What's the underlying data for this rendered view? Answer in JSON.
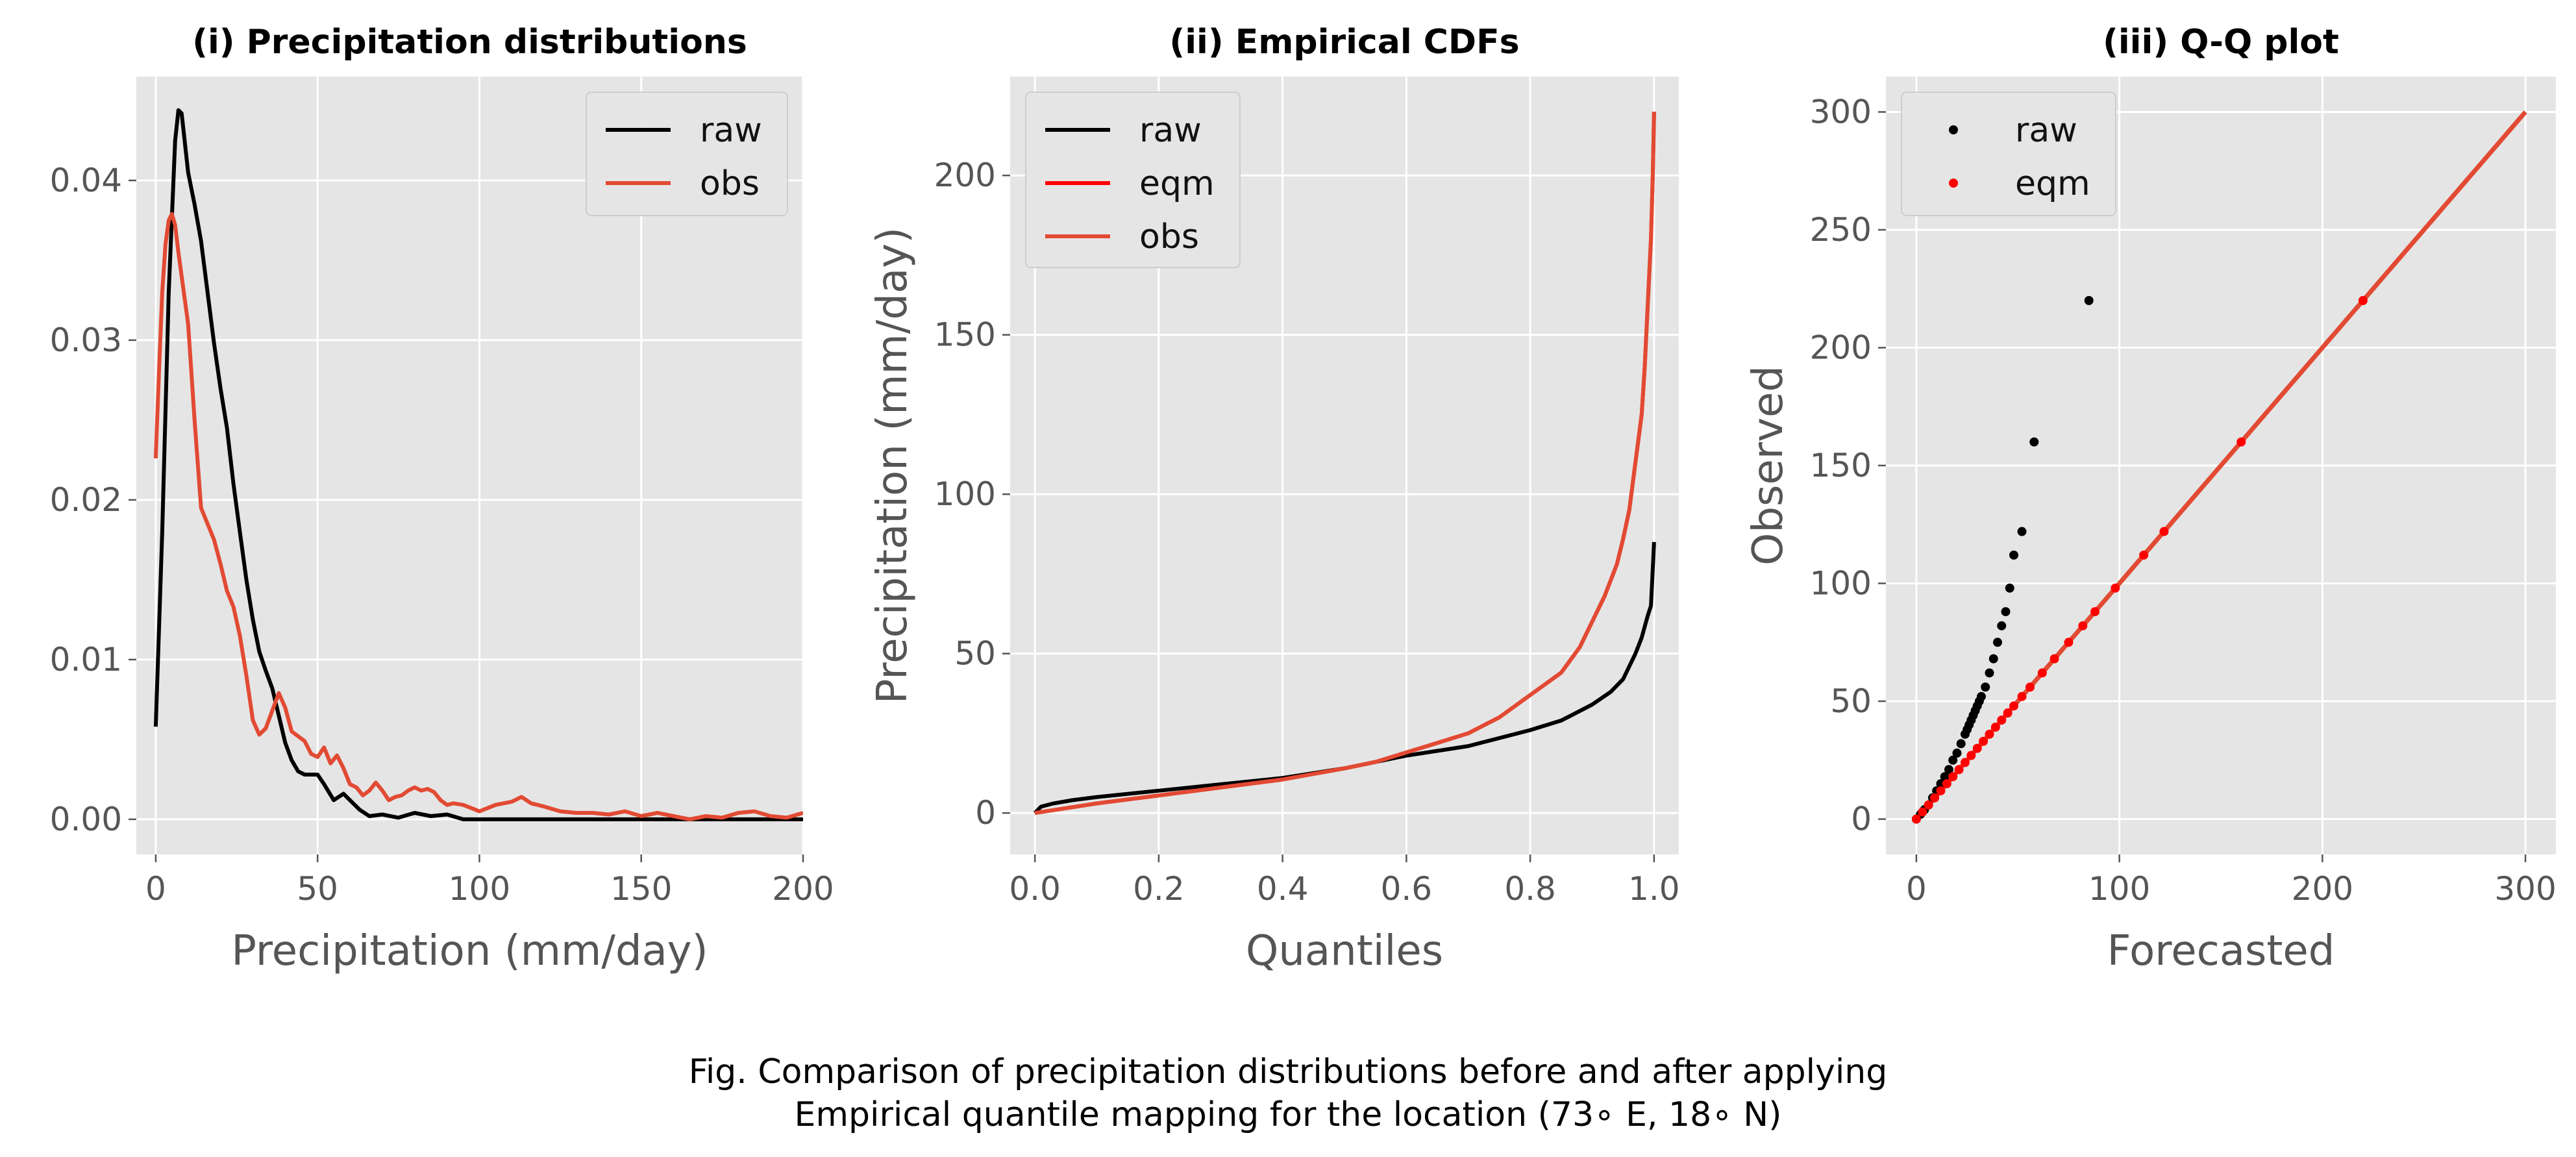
{
  "caption": {
    "line1": "Fig. Comparison of precipitation distributions before and after applying",
    "line2": "Empirical quantile mapping for the location (73∘ E, 18∘ N)"
  },
  "colors": {
    "raw": "#000000",
    "obs": "#E24A33",
    "eqm": "#FF0000",
    "panel_bg": "#E5E5E5",
    "grid": "#FFFFFF"
  },
  "chart_data": [
    {
      "type": "line",
      "title": "(i) Precipitation distributions",
      "xlabel": "Precipitation (mm/day)",
      "ylabel": "",
      "xlim": [
        -6,
        200
      ],
      "ylim": [
        -0.0022,
        0.0465
      ],
      "xticks": [
        0,
        50,
        100,
        150,
        200
      ],
      "yticks": [
        0.0,
        0.01,
        0.02,
        0.03,
        0.04
      ],
      "xtick_labels": [
        "0",
        "50",
        "100",
        "150",
        "200"
      ],
      "ytick_labels": [
        "0.00",
        "0.01",
        "0.02",
        "0.03",
        "0.04"
      ],
      "grid": true,
      "legend": "upper right",
      "series": [
        {
          "name": "raw",
          "color": "#000000",
          "x": [
            0,
            2,
            4,
            6,
            7,
            8,
            10,
            12,
            14,
            16,
            18,
            20,
            22,
            24,
            26,
            28,
            30,
            32,
            34,
            36,
            38,
            40,
            42,
            44,
            46,
            48,
            50,
            52,
            55,
            58,
            60,
            63,
            66,
            70,
            75,
            80,
            85,
            90,
            95,
            100,
            150,
            200
          ],
          "y": [
            0.0058,
            0.018,
            0.033,
            0.0425,
            0.0444,
            0.0442,
            0.0405,
            0.0385,
            0.0362,
            0.033,
            0.0298,
            0.027,
            0.0245,
            0.021,
            0.018,
            0.015,
            0.0125,
            0.0105,
            0.0093,
            0.0082,
            0.0065,
            0.0048,
            0.0037,
            0.003,
            0.0028,
            0.0028,
            0.0028,
            0.0022,
            0.0012,
            0.0016,
            0.0012,
            0.0006,
            0.0002,
            0.0003,
            0.0001,
            0.0004,
            0.0002,
            0.0003,
            0.0,
            0.0,
            0.0,
            0.0
          ]
        },
        {
          "name": "obs",
          "color": "#E24A33",
          "x": [
            0,
            1,
            2,
            3,
            4,
            5,
            6,
            7,
            8,
            10,
            12,
            14,
            16,
            18,
            20,
            22,
            24,
            26,
            28,
            30,
            32,
            34,
            36,
            38,
            40,
            42,
            44,
            46,
            48,
            50,
            52,
            54,
            56,
            58,
            60,
            62,
            64,
            66,
            68,
            70,
            72,
            74,
            76,
            78,
            80,
            82,
            84,
            86,
            88,
            90,
            92,
            95,
            100,
            105,
            110,
            113,
            116,
            120,
            125,
            130,
            135,
            140,
            145,
            150,
            155,
            160,
            165,
            170,
            175,
            180,
            185,
            190,
            195,
            200
          ],
          "y": [
            0.0226,
            0.028,
            0.033,
            0.036,
            0.0375,
            0.0379,
            0.0372,
            0.0355,
            0.034,
            0.031,
            0.025,
            0.0195,
            0.0185,
            0.0175,
            0.016,
            0.0143,
            0.0133,
            0.0115,
            0.009,
            0.0062,
            0.0053,
            0.0057,
            0.0068,
            0.0079,
            0.007,
            0.0055,
            0.0052,
            0.0049,
            0.0041,
            0.0039,
            0.0045,
            0.0035,
            0.004,
            0.0032,
            0.0022,
            0.002,
            0.0015,
            0.0018,
            0.0023,
            0.0018,
            0.0012,
            0.0014,
            0.0015,
            0.0018,
            0.002,
            0.0018,
            0.0019,
            0.0017,
            0.0012,
            0.0009,
            0.001,
            0.0009,
            0.0005,
            0.0009,
            0.0011,
            0.0014,
            0.001,
            0.0008,
            0.0005,
            0.0004,
            0.0004,
            0.0003,
            0.0005,
            0.0002,
            0.0004,
            0.0002,
            0.0,
            0.0002,
            0.0001,
            0.0004,
            0.0005,
            0.0002,
            0.0001,
            0.0004
          ]
        }
      ]
    },
    {
      "type": "line",
      "title": "(ii) Empirical CDFs",
      "xlabel": "Quantiles",
      "ylabel": "Precipitation (mm/day)",
      "xlim": [
        -0.04,
        1.04
      ],
      "ylim": [
        -13,
        231
      ],
      "xticks": [
        0.0,
        0.2,
        0.4,
        0.6,
        0.8,
        1.0
      ],
      "yticks": [
        0,
        50,
        100,
        150,
        200
      ],
      "xtick_labels": [
        "0.0",
        "0.2",
        "0.4",
        "0.6",
        "0.8",
        "1.0"
      ],
      "ytick_labels": [
        "0",
        "50",
        "100",
        "150",
        "200"
      ],
      "grid": true,
      "legend": "upper left",
      "series": [
        {
          "name": "raw",
          "color": "#000000",
          "x": [
            0.0,
            0.01,
            0.03,
            0.06,
            0.1,
            0.2,
            0.3,
            0.4,
            0.5,
            0.55,
            0.6,
            0.7,
            0.8,
            0.85,
            0.9,
            0.93,
            0.95,
            0.97,
            0.98,
            0.99,
            0.995,
            1.0
          ],
          "y": [
            0,
            2,
            3,
            4,
            5,
            7,
            9,
            11,
            14,
            16,
            18,
            21,
            26,
            29,
            34,
            38,
            42,
            50,
            55,
            62,
            65,
            85
          ]
        },
        {
          "name": "eqm",
          "color": "#FF0000",
          "x": [
            0.0,
            0.05,
            0.1,
            0.2,
            0.3,
            0.4,
            0.5,
            0.55,
            0.6,
            0.65,
            0.7,
            0.75,
            0.8,
            0.85,
            0.88,
            0.9,
            0.92,
            0.94,
            0.95,
            0.96,
            0.97,
            0.98,
            0.985,
            0.99,
            0.995,
            0.998,
            1.0
          ],
          "y": [
            0,
            1.5,
            3,
            5.5,
            8,
            10.5,
            14,
            16,
            19,
            22,
            25,
            30,
            37,
            44,
            52,
            60,
            68,
            78,
            86,
            95,
            110,
            125,
            140,
            160,
            180,
            200,
            220
          ]
        },
        {
          "name": "obs",
          "color": "#E24A33",
          "x": [
            0.0,
            0.05,
            0.1,
            0.2,
            0.3,
            0.4,
            0.5,
            0.55,
            0.6,
            0.65,
            0.7,
            0.75,
            0.8,
            0.85,
            0.88,
            0.9,
            0.92,
            0.94,
            0.95,
            0.96,
            0.97,
            0.98,
            0.985,
            0.99,
            0.995,
            0.998,
            1.0
          ],
          "y": [
            0,
            1.5,
            3,
            5.5,
            8,
            10.5,
            14,
            16,
            19,
            22,
            25,
            30,
            37,
            44,
            52,
            60,
            68,
            78,
            86,
            95,
            110,
            125,
            140,
            160,
            180,
            200,
            220
          ]
        }
      ]
    },
    {
      "type": "scatter",
      "title": "(iii) Q-Q plot",
      "xlabel": "Forecasted",
      "ylabel": "Observed",
      "xlim": [
        -15,
        315
      ],
      "ylim": [
        -15,
        315
      ],
      "xticks": [
        0,
        100,
        200,
        300
      ],
      "yticks": [
        0,
        50,
        100,
        150,
        200,
        250,
        300
      ],
      "xtick_labels": [
        "0",
        "100",
        "200",
        "300"
      ],
      "ytick_labels": [
        "0",
        "50",
        "100",
        "150",
        "200",
        "250",
        "300"
      ],
      "grid": true,
      "legend": "upper left",
      "reference_line": {
        "x": [
          0,
          300
        ],
        "y": [
          0,
          300
        ],
        "color": "#E24A33"
      },
      "series": [
        {
          "name": "raw",
          "color": "#000000",
          "x": [
            0,
            2,
            4,
            6,
            8,
            10,
            12,
            14,
            16,
            18,
            20,
            22,
            24,
            25,
            26,
            27,
            28,
            29,
            30,
            31,
            32,
            34,
            36,
            38,
            40,
            42,
            44,
            46,
            48,
            52,
            58,
            85
          ],
          "y": [
            0,
            2,
            4,
            6,
            9,
            12,
            15,
            18,
            21,
            25,
            28,
            32,
            36,
            38,
            40,
            42,
            44,
            46,
            48,
            50,
            52,
            56,
            62,
            68,
            75,
            82,
            88,
            98,
            112,
            122,
            160,
            220
          ]
        },
        {
          "name": "eqm",
          "color": "#FF0000",
          "x": [
            0,
            3,
            6,
            9,
            12,
            15,
            18,
            21,
            24,
            27,
            30,
            33,
            36,
            39,
            42,
            45,
            48,
            52,
            56,
            62,
            68,
            75,
            82,
            88,
            98,
            112,
            122,
            160,
            220
          ],
          "y": [
            0,
            3,
            6,
            9,
            12,
            15,
            18,
            21,
            24,
            27,
            30,
            33,
            36,
            39,
            42,
            45,
            48,
            52,
            56,
            62,
            68,
            75,
            82,
            88,
            98,
            112,
            122,
            160,
            220
          ]
        }
      ]
    }
  ]
}
